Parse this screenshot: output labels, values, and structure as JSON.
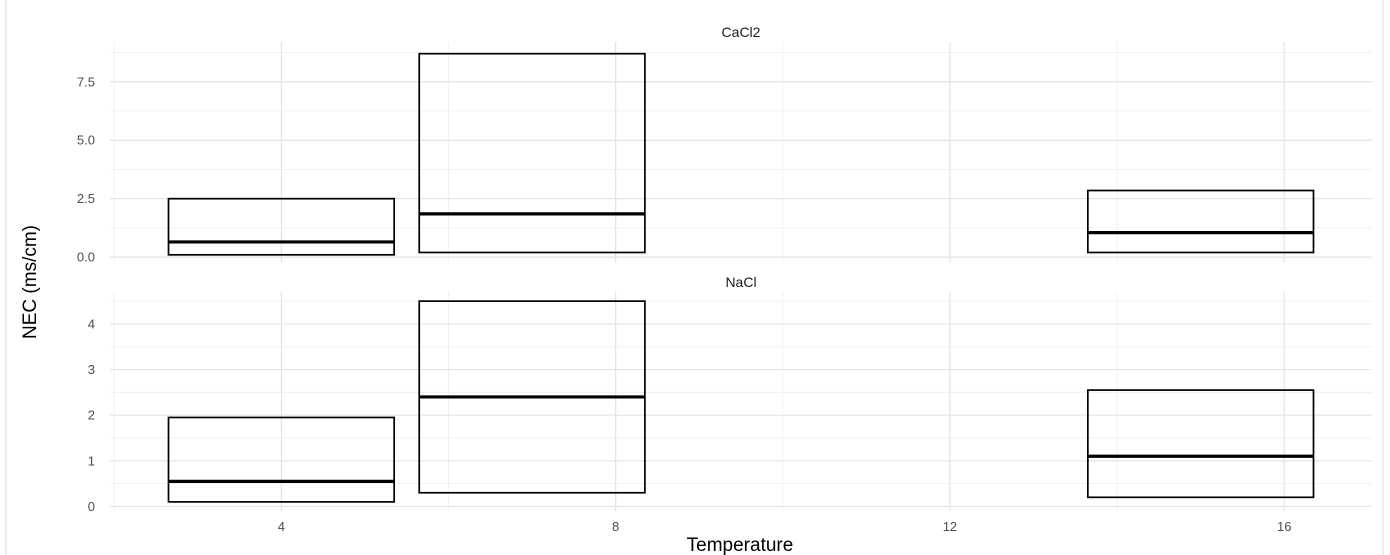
{
  "chart_data": {
    "type": "boxplot",
    "xlabel": "Temperature",
    "ylabel": "NEC (ms/cm)",
    "x_ticks": [
      4,
      8,
      12,
      16
    ],
    "xlim": [
      1.95,
      17.05
    ],
    "grid": true,
    "box_width": 2.7,
    "facets": [
      {
        "title": "CaCl2",
        "ylim": [
          -0.25,
          9.2
        ],
        "y_ticks": [
          "0.0",
          "2.5",
          "5.0",
          "7.5"
        ],
        "boxes": [
          {
            "x": 4,
            "low": 0.1,
            "median": 0.65,
            "high": 2.5
          },
          {
            "x": 7,
            "low": 0.2,
            "median": 1.85,
            "high": 8.7
          },
          {
            "x": 15,
            "low": 0.2,
            "median": 1.05,
            "high": 2.85
          }
        ]
      },
      {
        "title": "NaCl",
        "ylim": [
          -0.1,
          4.7
        ],
        "y_ticks": [
          "0",
          "1",
          "2",
          "3",
          "4"
        ],
        "boxes": [
          {
            "x": 4,
            "low": 0.1,
            "median": 0.55,
            "high": 1.95
          },
          {
            "x": 7,
            "low": 0.3,
            "median": 2.4,
            "high": 4.5
          },
          {
            "x": 15,
            "low": 0.2,
            "median": 1.1,
            "high": 2.55
          }
        ]
      }
    ]
  }
}
